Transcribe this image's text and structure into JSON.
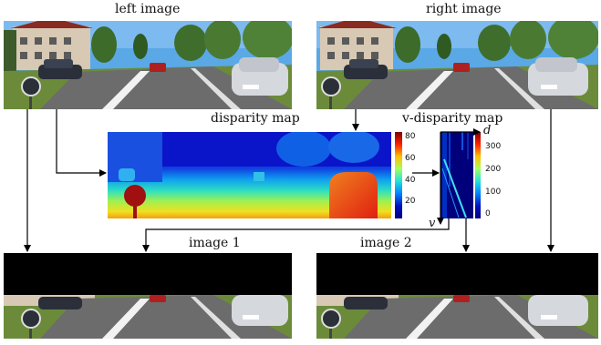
{
  "labels": {
    "left_image": "left image",
    "right_image": "right image",
    "disparity_map": "disparity map",
    "v_disparity_map": "v-disparity map",
    "image_1": "image 1",
    "image_2": "image 2",
    "axis_d": "d",
    "axis_v": "v"
  },
  "disparity_colorbar": {
    "ticks": [
      "80",
      "60",
      "40",
      "20"
    ]
  },
  "vdisparity_colorbar": {
    "ticks": [
      "300",
      "200",
      "100",
      "0"
    ]
  },
  "colors": {
    "sky": "#5aa8e6",
    "road": "#6c6c6c",
    "grass": "#6b8b3a",
    "building": "#d8c9b4",
    "roof": "#8a2b22",
    "car_silver": "#d5d8dc",
    "car_red": "#b01f1f",
    "jet_blue": "#0a10c8",
    "jet_red": "#e02010",
    "vdisp_dark": "#00007a",
    "black": "#000000"
  }
}
